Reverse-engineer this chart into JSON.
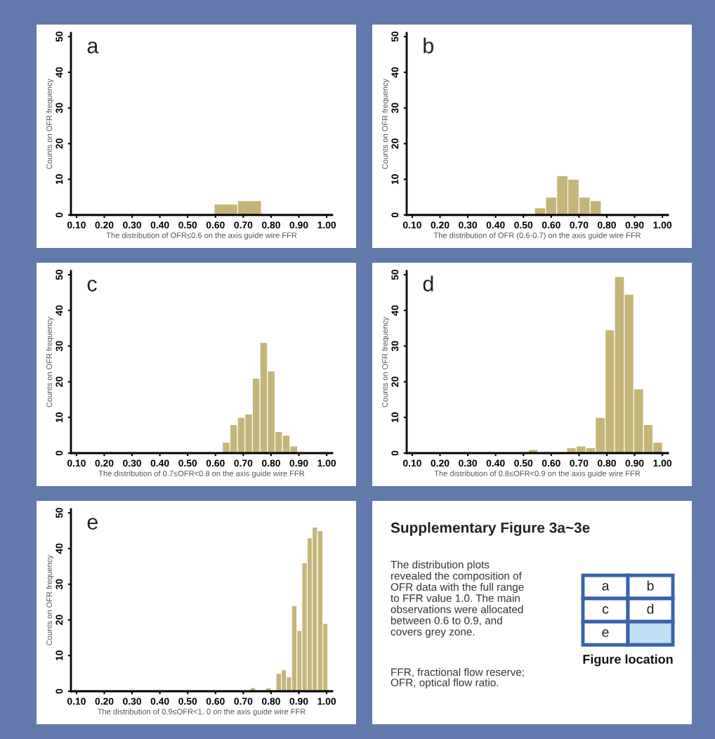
{
  "chart_data": [
    {
      "type": "histogram",
      "xlabel": "The distribution of OFR≤0.6 on the axis guide wire FFR",
      "ylabel": "Counts on OFR frequency",
      "annotations": [
        "a"
      ],
      "color": "#c4b57a",
      "bins": [
        0.595,
        0.68,
        0.765
      ],
      "values": [
        3,
        4
      ],
      "xlim": [
        0.08,
        1.02
      ],
      "ylim": [
        0,
        51
      ],
      "xticks": [
        {
          "value": 0.1,
          "label": "0.10"
        },
        {
          "value": 0.2,
          "label": "0.20"
        },
        {
          "value": 0.3,
          "label": "0.30"
        },
        {
          "value": 0.4,
          "label": "0.40"
        },
        {
          "value": 0.5,
          "label": "0.50"
        },
        {
          "value": 0.6,
          "label": "0.60"
        },
        {
          "value": 0.7,
          "label": "0.70"
        },
        {
          "value": 0.8,
          "label": "0.80"
        },
        {
          "value": 0.9,
          "label": "0.90"
        },
        {
          "value": 1.0,
          "label": "1.00"
        }
      ],
      "yticks": [
        0,
        10,
        20,
        30,
        40,
        50
      ],
      "grid": false
    },
    {
      "type": "histogram",
      "xlabel": "The distribution of OFR (0.6-0.7) on the axis guide wire FFR",
      "ylabel": "Counts on OFR frequency",
      "annotations": [
        "b"
      ],
      "color": "#c4b57a",
      "bins": [
        0.54,
        0.58,
        0.62,
        0.66,
        0.7,
        0.74,
        0.78
      ],
      "values": [
        2,
        5,
        11,
        10,
        5,
        4
      ],
      "xlim": [
        0.08,
        1.02
      ],
      "ylim": [
        0,
        51
      ],
      "xticks": [
        {
          "value": 0.1,
          "label": "0.10"
        },
        {
          "value": 0.2,
          "label": "0.20"
        },
        {
          "value": 0.3,
          "label": "0.30"
        },
        {
          "value": 0.4,
          "label": "0.40"
        },
        {
          "value": 0.5,
          "label": "0.50"
        },
        {
          "value": 0.6,
          "label": "0.60"
        },
        {
          "value": 0.7,
          "label": "0.70"
        },
        {
          "value": 0.8,
          "label": "0.80"
        },
        {
          "value": 0.9,
          "label": "0.90"
        },
        {
          "value": 1.0,
          "label": "1.00"
        }
      ],
      "yticks": [
        0,
        10,
        20,
        30,
        40,
        50
      ],
      "grid": false
    },
    {
      "type": "histogram",
      "xlabel": "The distribution of 0.7≤OFR<0.8 on the axis guide wire FFR",
      "ylabel": "Counts on OFR frequency",
      "annotations": [
        "c"
      ],
      "color": "#c4b57a",
      "bins": [
        0.625,
        0.652,
        0.679,
        0.706,
        0.733,
        0.76,
        0.787,
        0.814,
        0.841,
        0.868,
        0.895
      ],
      "values": [
        3,
        8,
        10,
        11,
        21,
        31,
        23,
        6,
        5,
        2
      ],
      "xlim": [
        0.08,
        1.02
      ],
      "ylim": [
        0,
        51
      ],
      "xticks": [
        {
          "value": 0.1,
          "label": "0.10"
        },
        {
          "value": 0.2,
          "label": "0.20"
        },
        {
          "value": 0.3,
          "label": "0.30"
        },
        {
          "value": 0.4,
          "label": "0.40"
        },
        {
          "value": 0.5,
          "label": "0.50"
        },
        {
          "value": 0.6,
          "label": "0.60"
        },
        {
          "value": 0.7,
          "label": "0.70"
        },
        {
          "value": 0.8,
          "label": "0.80"
        },
        {
          "value": 0.9,
          "label": "0.90"
        },
        {
          "value": 1.0,
          "label": "1.00"
        }
      ],
      "yticks": [
        0,
        10,
        20,
        30,
        40,
        50
      ],
      "grid": false
    },
    {
      "type": "histogram",
      "xlabel": "The distribution of 0.8≤OFR<0.9 on the axis guide wire FFR",
      "ylabel": "Counts on OFR frequency",
      "annotations": [
        "d"
      ],
      "color": "#c4b57a",
      "bins": [
        0.518,
        0.552,
        0.587,
        0.621,
        0.656,
        0.69,
        0.725,
        0.759,
        0.794,
        0.828,
        0.863,
        0.897,
        0.932,
        0.966,
        1.0
      ],
      "values": [
        1,
        0,
        0,
        0,
        1.5,
        2,
        1.5,
        10,
        34.5,
        49.5,
        44.5,
        18,
        8,
        3
      ],
      "xlim": [
        0.08,
        1.02
      ],
      "ylim": [
        0,
        51
      ],
      "xticks": [
        {
          "value": 0.1,
          "label": "0.10"
        },
        {
          "value": 0.2,
          "label": "0.20"
        },
        {
          "value": 0.3,
          "label": "0.30"
        },
        {
          "value": 0.4,
          "label": "0.40"
        },
        {
          "value": 0.5,
          "label": "0.50"
        },
        {
          "value": 0.6,
          "label": "0.60"
        },
        {
          "value": 0.7,
          "label": "0.70"
        },
        {
          "value": 0.8,
          "label": "0.80"
        },
        {
          "value": 0.9,
          "label": "0.90"
        },
        {
          "value": 1.0,
          "label": "1.00"
        }
      ],
      "yticks": [
        0,
        10,
        20,
        30,
        40,
        50
      ],
      "grid": false
    },
    {
      "type": "histogram",
      "xlabel": "The distribution of 0.9≤OFR<1. 0 on the axis guide wire FFR",
      "ylabel": "Counts on OFR frequency",
      "annotations": [
        "e"
      ],
      "color": "#c4b57a",
      "bins": [
        0.725,
        0.744,
        0.762,
        0.781,
        0.8,
        0.818,
        0.837,
        0.855,
        0.874,
        0.893,
        0.911,
        0.93,
        0.948,
        0.967,
        0.986,
        1.004
      ],
      "values": [
        1,
        0,
        0,
        1,
        0,
        5,
        6,
        4,
        24,
        17,
        36,
        43,
        46,
        45,
        19
      ],
      "xlim": [
        0.08,
        1.02
      ],
      "ylim": [
        0,
        51
      ],
      "xticks": [
        {
          "value": 0.1,
          "label": "0.10"
        },
        {
          "value": 0.2,
          "label": "0.20"
        },
        {
          "value": 0.3,
          "label": "0.30"
        },
        {
          "value": 0.4,
          "label": "0.40"
        },
        {
          "value": 0.5,
          "label": "0.50"
        },
        {
          "value": 0.6,
          "label": "0.60"
        },
        {
          "value": 0.7,
          "label": "0.70"
        },
        {
          "value": 0.8,
          "label": "0.80"
        },
        {
          "value": 0.9,
          "label": "0.90"
        },
        {
          "value": 1.0,
          "label": "1.00"
        }
      ],
      "yticks": [
        0,
        10,
        20,
        30,
        40,
        50
      ],
      "grid": false
    },
    {
      "type": "other",
      "title": "Supplementary Figure 3a~3e",
      "annotations": [
        "The distribution plots\nrevealed the composition of\nOFR data with the full range\nto FFR value 1.0. The main\nobservations were allocated\nbetween 0.6 to 0.9, and\ncovers grey zone.",
        "FFR, fractional flow reserve;\nOFR, optical flow ratio.",
        "a",
        "b",
        "c",
        "d",
        "e",
        "Figure location"
      ]
    }
  ]
}
